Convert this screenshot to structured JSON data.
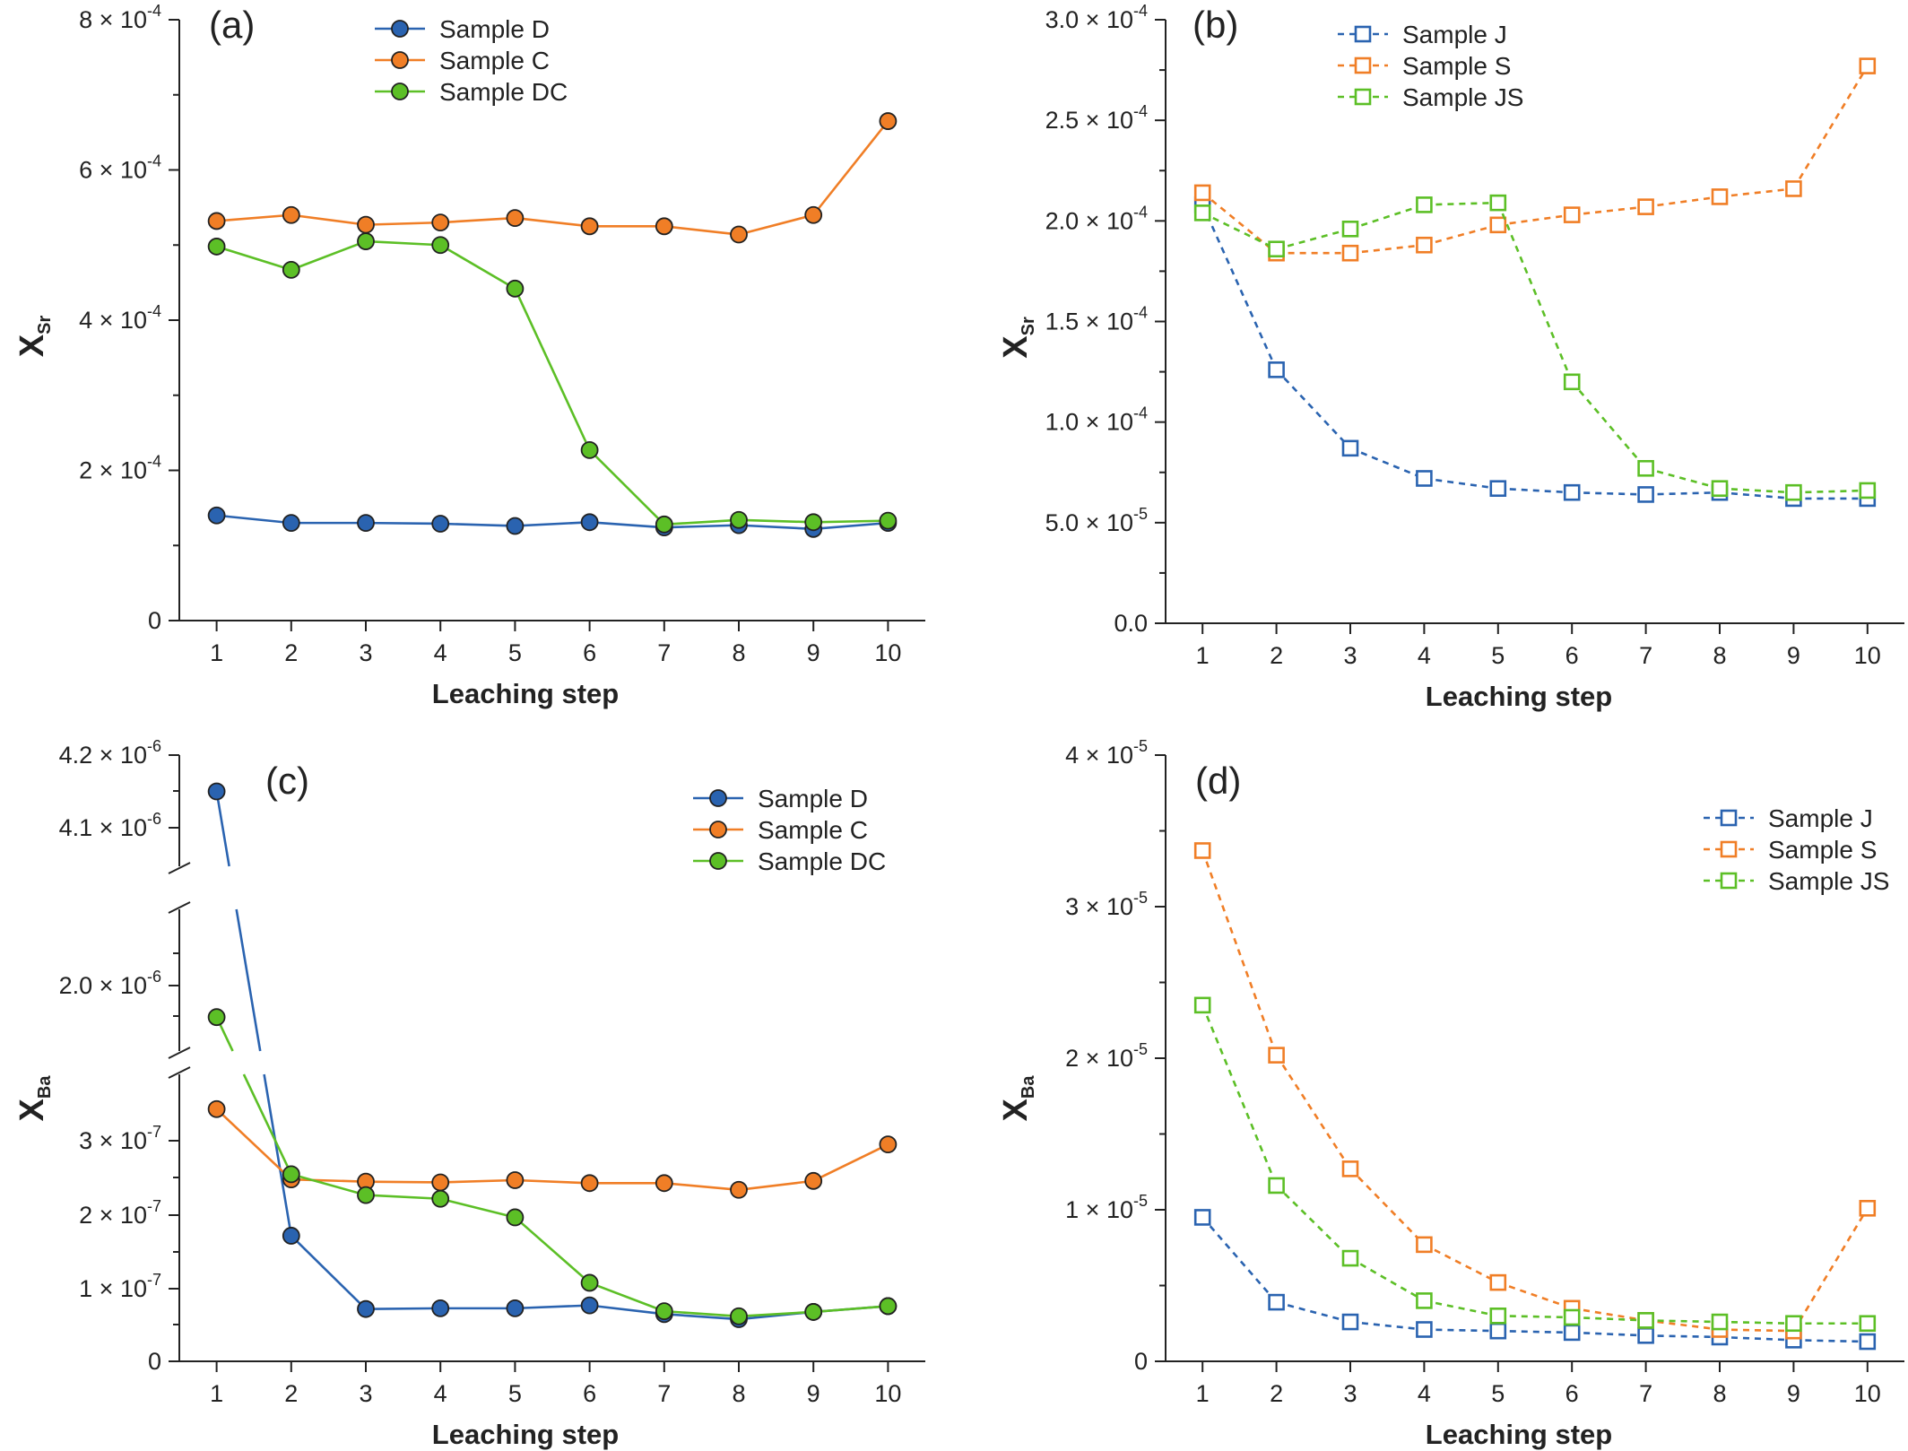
{
  "colors": {
    "blue": "#2a63b0",
    "orange": "#f07e26",
    "green": "#5cbf26",
    "axis": "#222222"
  },
  "chart_data": [
    {
      "panel": "(a)",
      "type": "line",
      "marker": "circle",
      "line_style": "solid",
      "xlabel": "Leaching step",
      "ylabel": "X",
      "ylabel_sub": "Sr",
      "x": [
        1,
        2,
        3,
        4,
        5,
        6,
        7,
        8,
        9,
        10
      ],
      "xlim": [
        0.5,
        10.5
      ],
      "ylim": [
        0,
        0.0008
      ],
      "yticks": [
        {
          "value": 0,
          "mant": "0",
          "exp": ""
        },
        {
          "value": 0.0002,
          "mant": "2 × 10",
          "exp": "-4"
        },
        {
          "value": 0.0004,
          "mant": "4 × 10",
          "exp": "-4"
        },
        {
          "value": 0.0006,
          "mant": "6 × 10",
          "exp": "-4"
        },
        {
          "value": 0.0008,
          "mant": "8 × 10",
          "exp": "-4"
        }
      ],
      "legend_position": "top-center",
      "series": [
        {
          "name": "Sample D",
          "color": "#2a63b0",
          "values": [
            0.00014,
            0.00013,
            0.00013,
            0.000129,
            0.000126,
            0.000131,
            0.000124,
            0.000127,
            0.000122,
            0.00013
          ]
        },
        {
          "name": "Sample C",
          "color": "#f07e26",
          "values": [
            0.000532,
            0.00054,
            0.000527,
            0.00053,
            0.000536,
            0.000525,
            0.000525,
            0.000514,
            0.00054,
            0.000665
          ]
        },
        {
          "name": "Sample DC",
          "color": "#5cbf26",
          "values": [
            0.000498,
            0.000467,
            0.000505,
            0.0005,
            0.000442,
            0.000227,
            0.000128,
            0.000134,
            0.000131,
            0.000133
          ]
        }
      ]
    },
    {
      "panel": "(b)",
      "type": "line",
      "marker": "open-square",
      "line_style": "dashed",
      "xlabel": "Leaching step",
      "ylabel": "X",
      "ylabel_sub": "Sr",
      "x": [
        1,
        2,
        3,
        4,
        5,
        6,
        7,
        8,
        9,
        10
      ],
      "xlim": [
        0.5,
        10.5
      ],
      "ylim": [
        0,
        0.0003
      ],
      "yticks": [
        {
          "value": 0,
          "mant": "0.0",
          "exp": ""
        },
        {
          "value": 5e-05,
          "mant": "5.0 × 10",
          "exp": "-5"
        },
        {
          "value": 0.0001,
          "mant": "1.0 × 10",
          "exp": "-4"
        },
        {
          "value": 0.00015,
          "mant": "1.5 × 10",
          "exp": "-4"
        },
        {
          "value": 0.0002,
          "mant": "2.0 × 10",
          "exp": "-4"
        },
        {
          "value": 0.00025,
          "mant": "2.5 × 10",
          "exp": "-4"
        },
        {
          "value": 0.0003,
          "mant": "3.0 × 10",
          "exp": "-4"
        }
      ],
      "legend_position": "top-left",
      "series": [
        {
          "name": "Sample J",
          "color": "#2a63b0",
          "values": [
            0.000208,
            0.000126,
            8.7e-05,
            7.2e-05,
            6.7e-05,
            6.5e-05,
            6.4e-05,
            6.5e-05,
            6.2e-05,
            6.2e-05
          ]
        },
        {
          "name": "Sample S",
          "color": "#f07e26",
          "values": [
            0.000214,
            0.000184,
            0.000184,
            0.000188,
            0.000198,
            0.000203,
            0.000207,
            0.000212,
            0.000216,
            0.000277
          ]
        },
        {
          "name": "Sample JS",
          "color": "#5cbf26",
          "values": [
            0.000204,
            0.000186,
            0.000196,
            0.000208,
            0.000209,
            0.00012,
            7.7e-05,
            6.7e-05,
            6.5e-05,
            6.6e-05
          ]
        }
      ]
    },
    {
      "panel": "(c)",
      "type": "line",
      "marker": "circle",
      "line_style": "solid",
      "broken_axis": true,
      "xlabel": "Leaching step",
      "ylabel": "X",
      "ylabel_sub": "Ba",
      "x": [
        1,
        2,
        3,
        4,
        5,
        6,
        7,
        8,
        9,
        10
      ],
      "xlim": [
        0.5,
        10.5
      ],
      "ylim": [
        0,
        4.2e-06
      ],
      "yticks": [
        {
          "value": 0,
          "mant": "0",
          "exp": ""
        },
        {
          "value": 1e-07,
          "mant": "1 × 10",
          "exp": "-7"
        },
        {
          "value": 2e-07,
          "mant": "2 × 10",
          "exp": "-7"
        },
        {
          "value": 3e-07,
          "mant": "3 × 10",
          "exp": "-7"
        },
        {
          "value": 2e-06,
          "mant": "2.0 × 10",
          "exp": "-6"
        },
        {
          "value": 4.1e-06,
          "mant": "4.1 × 10",
          "exp": "-6"
        },
        {
          "value": 4.2e-06,
          "mant": "4.2 × 10",
          "exp": "-6"
        }
      ],
      "legend_position": "top-right",
      "series": [
        {
          "name": "Sample D",
          "color": "#2a63b0",
          "values": [
            4.15e-06,
            1.72e-07,
            7.2e-08,
            7.3e-08,
            7.3e-08,
            7.7e-08,
            6.5e-08,
            5.8e-08,
            6.8e-08,
            7.6e-08
          ]
        },
        {
          "name": "Sample C",
          "color": "#f07e26",
          "values": [
            3.43e-07,
            2.48e-07,
            2.45e-07,
            2.44e-07,
            2.47e-07,
            2.43e-07,
            2.43e-07,
            2.34e-07,
            2.46e-07,
            2.95e-07
          ]
        },
        {
          "name": "Sample DC",
          "color": "#5cbf26",
          "values": [
            1.78e-06,
            2.55e-07,
            2.27e-07,
            2.22e-07,
            1.97e-07,
            1.08e-07,
            6.9e-08,
            6.2e-08,
            6.8e-08,
            7.6e-08
          ]
        }
      ]
    },
    {
      "panel": "(d)",
      "type": "line",
      "marker": "open-square",
      "line_style": "dashed",
      "xlabel": "Leaching step",
      "ylabel": "X",
      "ylabel_sub": "Ba",
      "x": [
        1,
        2,
        3,
        4,
        5,
        6,
        7,
        8,
        9,
        10
      ],
      "xlim": [
        0.5,
        10.5
      ],
      "ylim": [
        0,
        4e-05
      ],
      "yticks": [
        {
          "value": 0,
          "mant": "0",
          "exp": ""
        },
        {
          "value": 1e-05,
          "mant": "1 × 10",
          "exp": "-5"
        },
        {
          "value": 2e-05,
          "mant": "2 × 10",
          "exp": "-5"
        },
        {
          "value": 3e-05,
          "mant": "3 × 10",
          "exp": "-5"
        },
        {
          "value": 4e-05,
          "mant": "4 × 10",
          "exp": "-5"
        }
      ],
      "legend_position": "top-right",
      "series": [
        {
          "name": "Sample J",
          "color": "#2a63b0",
          "values": [
            9.5e-06,
            3.9e-06,
            2.6e-06,
            2.1e-06,
            2e-06,
            1.9e-06,
            1.7e-06,
            1.6e-06,
            1.4e-06,
            1.3e-06
          ]
        },
        {
          "name": "Sample S",
          "color": "#f07e26",
          "values": [
            3.37e-05,
            2.02e-05,
            1.27e-05,
            7.7e-06,
            5.2e-06,
            3.5e-06,
            2.7e-06,
            2.1e-06,
            2e-06,
            1.01e-05
          ]
        },
        {
          "name": "Sample JS",
          "color": "#5cbf26",
          "values": [
            2.35e-05,
            1.16e-05,
            6.8e-06,
            4e-06,
            3e-06,
            2.9e-06,
            2.7e-06,
            2.6e-06,
            2.5e-06,
            2.5e-06
          ]
        }
      ]
    }
  ]
}
